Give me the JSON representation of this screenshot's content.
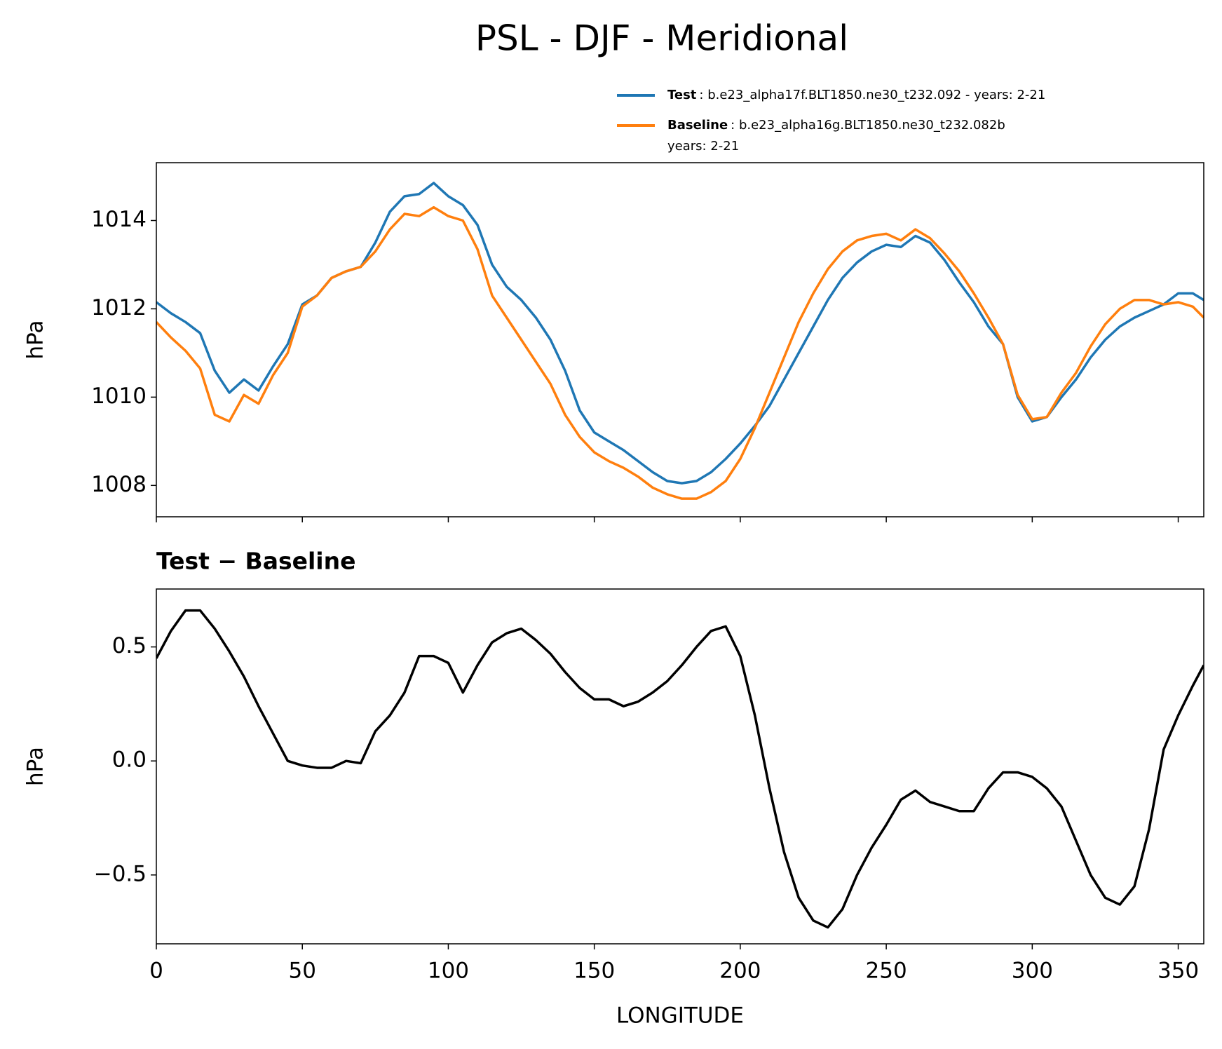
{
  "title": "PSL - DJF - Meridional",
  "chart_data": [
    {
      "type": "line",
      "ylabel": "hPa",
      "x": [
        0,
        5,
        10,
        15,
        20,
        25,
        30,
        35,
        40,
        45,
        50,
        55,
        60,
        65,
        70,
        75,
        80,
        85,
        90,
        95,
        100,
        105,
        110,
        115,
        120,
        125,
        130,
        135,
        140,
        145,
        150,
        155,
        160,
        165,
        170,
        175,
        180,
        185,
        190,
        195,
        200,
        205,
        210,
        215,
        220,
        225,
        230,
        235,
        240,
        245,
        250,
        255,
        260,
        265,
        270,
        275,
        280,
        285,
        290,
        295,
        300,
        305,
        310,
        315,
        320,
        325,
        330,
        335,
        340,
        345,
        350,
        355,
        358.75
      ],
      "series": [
        {
          "name": "Test",
          "legend_text": [
            ": b.e23_alpha17f.BLT1850.ne30_t232.092 - years: 2-21"
          ],
          "color": "#1f77b4",
          "values": [
            1012.15,
            1011.9,
            1011.7,
            1011.45,
            1010.6,
            1010.1,
            1010.4,
            1010.15,
            1010.7,
            1011.2,
            1012.1,
            1012.3,
            1012.7,
            1012.85,
            1012.95,
            1013.5,
            1014.2,
            1014.55,
            1014.6,
            1014.85,
            1014.55,
            1014.35,
            1013.9,
            1013.0,
            1012.5,
            1012.2,
            1011.8,
            1011.3,
            1010.6,
            1009.7,
            1009.2,
            1009.0,
            1008.8,
            1008.55,
            1008.3,
            1008.1,
            1008.05,
            1008.1,
            1008.3,
            1008.6,
            1008.95,
            1009.35,
            1009.8,
            1010.4,
            1011.0,
            1011.6,
            1012.2,
            1012.7,
            1013.05,
            1013.3,
            1013.45,
            1013.4,
            1013.65,
            1013.5,
            1013.1,
            1012.6,
            1012.15,
            1011.6,
            1011.2,
            1010.0,
            1009.45,
            1009.55,
            1010.0,
            1010.4,
            1010.9,
            1011.3,
            1011.6,
            1011.8,
            1011.95,
            1012.1,
            1012.35,
            1012.35,
            1012.2
          ]
        },
        {
          "name": "Baseline",
          "legend_text": [
            ": b.e23_alpha16g.BLT1850.ne30_t232.082b",
            "years: 2-21"
          ],
          "color": "#ff7f0e",
          "values": [
            1011.7,
            1011.35,
            1011.05,
            1010.65,
            1009.6,
            1009.45,
            1010.05,
            1009.85,
            1010.5,
            1011.0,
            1012.05,
            1012.3,
            1012.7,
            1012.85,
            1012.95,
            1013.3,
            1013.8,
            1014.15,
            1014.1,
            1014.3,
            1014.1,
            1014.0,
            1013.35,
            1012.3,
            1011.8,
            1011.3,
            1010.8,
            1010.3,
            1009.6,
            1009.1,
            1008.75,
            1008.55,
            1008.4,
            1008.2,
            1007.95,
            1007.8,
            1007.7,
            1007.7,
            1007.85,
            1008.1,
            1008.6,
            1009.3,
            1010.1,
            1010.9,
            1011.7,
            1012.35,
            1012.9,
            1013.3,
            1013.55,
            1013.65,
            1013.7,
            1013.55,
            1013.8,
            1013.6,
            1013.25,
            1012.85,
            1012.35,
            1011.8,
            1011.2,
            1010.05,
            1009.5,
            1009.55,
            1010.1,
            1010.55,
            1011.15,
            1011.65,
            1012.0,
            1012.2,
            1012.2,
            1012.1,
            1012.15,
            1012.05,
            1011.8
          ]
        }
      ],
      "xlim": [
        0,
        358.75
      ],
      "xticks": [
        0,
        50,
        100,
        150,
        200,
        250,
        300,
        350
      ],
      "show_xticklabels": false,
      "ylim": [
        1007.29,
        1015.31
      ],
      "yticks": [
        1008,
        1010,
        1012,
        1014
      ]
    },
    {
      "type": "line",
      "title": "Test − Baseline",
      "ylabel": "hPa",
      "xlabel": "LONGITUDE",
      "x": [
        0,
        5,
        10,
        15,
        20,
        25,
        30,
        35,
        40,
        45,
        50,
        55,
        60,
        65,
        70,
        75,
        80,
        85,
        90,
        95,
        100,
        105,
        110,
        115,
        120,
        125,
        130,
        135,
        140,
        145,
        150,
        155,
        160,
        165,
        170,
        175,
        180,
        185,
        190,
        195,
        200,
        205,
        210,
        215,
        220,
        225,
        230,
        235,
        240,
        245,
        250,
        255,
        260,
        265,
        270,
        275,
        280,
        285,
        290,
        295,
        300,
        305,
        310,
        315,
        320,
        325,
        330,
        335,
        340,
        345,
        350,
        355,
        358.75
      ],
      "series": [
        {
          "color": "#000000",
          "values": [
            0.45,
            0.57,
            0.66,
            0.66,
            0.58,
            0.48,
            0.37,
            0.24,
            0.12,
            0.0,
            -0.02,
            -0.03,
            -0.03,
            0.0,
            -0.01,
            0.13,
            0.2,
            0.3,
            0.46,
            0.46,
            0.43,
            0.3,
            0.42,
            0.52,
            0.56,
            0.58,
            0.53,
            0.47,
            0.39,
            0.32,
            0.27,
            0.27,
            0.24,
            0.26,
            0.3,
            0.35,
            0.42,
            0.5,
            0.57,
            0.59,
            0.46,
            0.2,
            -0.12,
            -0.4,
            -0.6,
            -0.7,
            -0.73,
            -0.65,
            -0.5,
            -0.38,
            -0.28,
            -0.17,
            -0.13,
            -0.18,
            -0.2,
            -0.22,
            -0.22,
            -0.12,
            -0.05,
            -0.05,
            -0.07,
            -0.12,
            -0.2,
            -0.35,
            -0.5,
            -0.6,
            -0.63,
            -0.55,
            -0.3,
            0.05,
            0.2,
            0.33,
            0.42
          ]
        }
      ],
      "xlim": [
        0,
        358.75
      ],
      "xticks": [
        0,
        50,
        100,
        150,
        200,
        250,
        300,
        350
      ],
      "show_xticklabels": true,
      "ylim": [
        -0.802,
        0.754
      ],
      "yticks": [
        {
          "value": -0.5,
          "label": "−0.5"
        },
        {
          "value": 0,
          "label": "0.0"
        },
        0.5
      ]
    }
  ]
}
